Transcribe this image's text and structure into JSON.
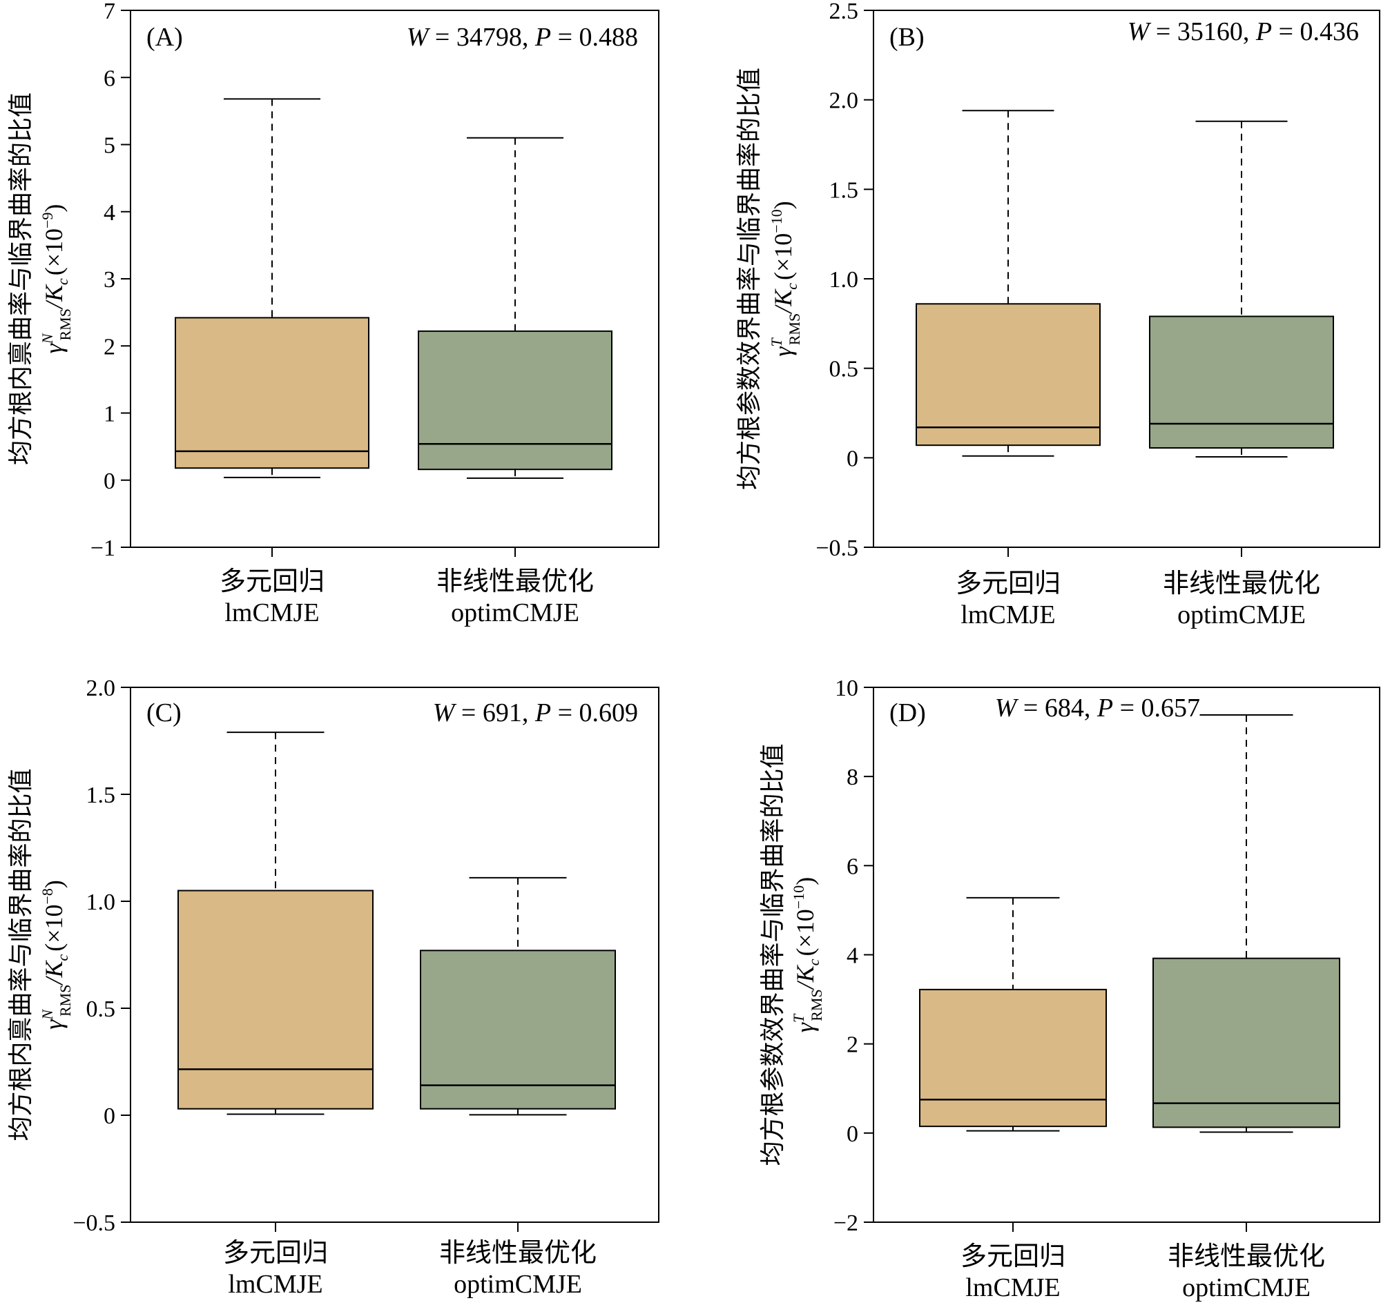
{
  "chart_data": [
    {
      "type": "box",
      "panel_label": "(A)",
      "annotation": {
        "w_label": "W",
        "w_value": " = 34798, ",
        "p_label": "P",
        "p_value": " = 0.488"
      },
      "ylabel": {
        "main": "均方根内禀曲率与临界曲率的比值",
        "sym": "γ",
        "sup": "N",
        "sub": "RMS",
        "k": "/K",
        "ksub": "c",
        "scale": "(×10",
        "exp": "−9",
        "close": ")"
      },
      "ylim": [
        -1,
        7
      ],
      "yticks": [
        -1,
        0,
        1,
        2,
        3,
        4,
        5,
        6,
        7
      ],
      "ytick_labels": [
        "−1",
        "0",
        "1",
        "2",
        "3",
        "4",
        "5",
        "6",
        "7"
      ],
      "categories": [
        {
          "cn": "多元回归",
          "en": "lmCMJE"
        },
        {
          "cn": "非线性最优化",
          "en": "optimCMJE"
        }
      ],
      "boxes": [
        {
          "min": 0.04,
          "q1": 0.18,
          "median": 0.43,
          "q3": 2.42,
          "max": 5.68,
          "color": "#d9b985"
        },
        {
          "min": 0.03,
          "q1": 0.16,
          "median": 0.54,
          "q3": 2.22,
          "max": 5.1,
          "color": "#98a68a"
        }
      ]
    },
    {
      "type": "box",
      "panel_label": "(B)",
      "annotation": {
        "w_label": "W",
        "w_value": " = 35160, ",
        "p_label": "P",
        "p_value": " = 0.436"
      },
      "ylabel": {
        "main": "均方根参数效界曲率与临界曲率的比值",
        "sym": "γ",
        "sup": "T",
        "sub": "RMS",
        "k": "/K",
        "ksub": "c",
        "scale": "(×10",
        "exp": "−10",
        "close": ")"
      },
      "ylim": [
        -0.5,
        2.5
      ],
      "yticks": [
        -0.5,
        0,
        0.5,
        1.0,
        1.5,
        2.0,
        2.5
      ],
      "ytick_labels": [
        "−0.5",
        "0",
        "0.5",
        "1.0",
        "1.5",
        "2.0",
        "2.5"
      ],
      "categories": [
        {
          "cn": "多元回归",
          "en": "lmCMJE"
        },
        {
          "cn": "非线性最优化",
          "en": "optimCMJE"
        }
      ],
      "boxes": [
        {
          "min": 0.01,
          "q1": 0.07,
          "median": 0.17,
          "q3": 0.86,
          "max": 1.94,
          "color": "#d9b985"
        },
        {
          "min": 0.005,
          "q1": 0.055,
          "median": 0.19,
          "q3": 0.79,
          "max": 1.88,
          "color": "#98a68a"
        }
      ]
    },
    {
      "type": "box",
      "panel_label": "(C)",
      "annotation": {
        "w_label": "W",
        "w_value": " = 691, ",
        "p_label": "P",
        "p_value": " = 0.609"
      },
      "ylabel": {
        "main": "均方根内禀曲率与临界曲率的比值",
        "sym": "γ",
        "sup": "N",
        "sub": "RMS",
        "k": "/K",
        "ksub": "c",
        "scale": "(×10",
        "exp": "−8",
        "close": ")"
      },
      "ylim": [
        -0.5,
        2.0
      ],
      "yticks": [
        -0.5,
        0,
        0.5,
        1.0,
        1.5,
        2.0
      ],
      "ytick_labels": [
        "−0.5",
        "0",
        "0.5",
        "1.0",
        "1.5",
        "2.0"
      ],
      "categories": [
        {
          "cn": "多元回归",
          "en": "lmCMJE"
        },
        {
          "cn": "非线性最优化",
          "en": "optimCMJE"
        }
      ],
      "boxes": [
        {
          "min": 0.005,
          "q1": 0.03,
          "median": 0.215,
          "q3": 1.05,
          "max": 1.79,
          "color": "#d9b985"
        },
        {
          "min": 0.002,
          "q1": 0.03,
          "median": 0.14,
          "q3": 0.77,
          "max": 1.11,
          "color": "#98a68a"
        }
      ]
    },
    {
      "type": "box",
      "panel_label": "(D)",
      "annotation": {
        "w_label": "W",
        "w_value": " = 684, ",
        "p_label": "P",
        "p_value": " = 0.657"
      },
      "ylabel": {
        "main": "均方根参数效界曲率与临界曲率的比值",
        "sym": "γ",
        "sup": "T",
        "sub": "RMS",
        "k": "/K",
        "ksub": "c",
        "scale": "(×10",
        "exp": "−10",
        "close": ")"
      },
      "ylim": [
        -2,
        10
      ],
      "yticks": [
        -2,
        0,
        2,
        4,
        6,
        8,
        10
      ],
      "ytick_labels": [
        "−2",
        "0",
        "2",
        "4",
        "6",
        "8",
        "10"
      ],
      "categories": [
        {
          "cn": "多元回归",
          "en": "lmCMJE"
        },
        {
          "cn": "非线性最优化",
          "en": "optimCMJE"
        }
      ],
      "boxes": [
        {
          "min": 0.05,
          "q1": 0.15,
          "median": 0.75,
          "q3": 3.22,
          "max": 5.28,
          "color": "#d9b985"
        },
        {
          "min": 0.02,
          "q1": 0.13,
          "median": 0.67,
          "q3": 3.92,
          "max": 9.38,
          "color": "#98a68a"
        }
      ]
    }
  ]
}
